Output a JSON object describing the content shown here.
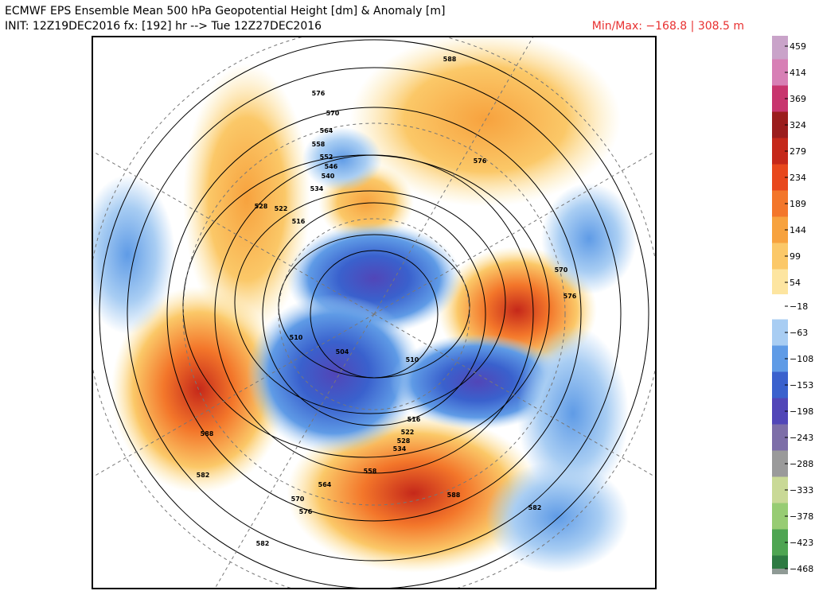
{
  "header": {
    "title": "ECMWF EPS Ensemble Mean 500 hPa Geopotential Height [dm] & Anomaly [m]",
    "init": "INIT: 12Z19DEC2016 fx: [192] hr --> Tue 12Z27DEC2016",
    "minmax": "Min/Max: −168.8 | 308.5 m"
  },
  "colorbar": {
    "ticks": [
      459,
      414,
      369,
      324,
      279,
      234,
      189,
      144,
      99,
      54,
      {
        "value": -18,
        "label": "−18"
      },
      {
        "value": -63,
        "label": "−63"
      },
      {
        "value": -108,
        "label": "−108"
      },
      {
        "value": -153,
        "label": "−153"
      },
      {
        "value": -198,
        "label": "−198"
      },
      {
        "value": -243,
        "label": "−243"
      },
      {
        "value": -288,
        "label": "−288"
      },
      {
        "value": -333,
        "label": "−333"
      },
      {
        "value": -378,
        "label": "−378"
      },
      {
        "value": -423,
        "label": "−423"
      },
      {
        "value": -468,
        "label": "−468"
      }
    ],
    "colors": [
      "#c9a3c9",
      "#d77fb5",
      "#c8356e",
      "#9b1d1d",
      "#c5281a",
      "#e8481d",
      "#f3762a",
      "#f7a23e",
      "#fbc868",
      "#fde5a0",
      "#ffffff",
      "#a8cdf3",
      "#5f9be6",
      "#3a61cd",
      "#5146b8",
      "#7d6ea8",
      "#9a9a9a",
      "#c9d996",
      "#97cc73",
      "#4ea552",
      "#2d7a42",
      "#8f9a95"
    ]
  },
  "map": {
    "contour_labels": [
      588,
      576,
      570,
      564,
      558,
      552,
      546,
      540,
      534,
      528,
      522,
      516,
      510,
      504,
      510,
      516,
      522,
      528,
      534,
      558,
      564,
      570,
      576,
      582,
      588,
      582,
      582,
      588,
      576,
      570,
      576
    ]
  }
}
